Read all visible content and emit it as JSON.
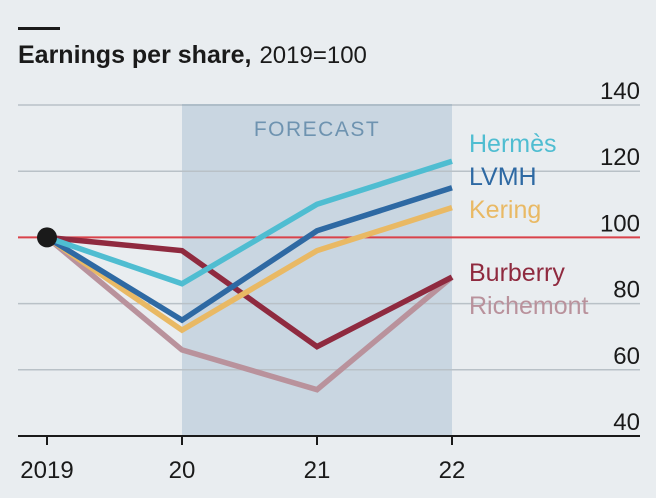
{
  "colors": {
    "background": "#e9edf0",
    "forecast_band": "#c9d6e1",
    "forecast_line": "#8fb0c9",
    "forecast_text": "#6e93b0",
    "gridline": "#b9c1c7",
    "baseline": "#d9424a",
    "axis": "#1a1a1a"
  },
  "chart_data": {
    "type": "line",
    "title": "Earnings per share,",
    "subtitle": "2019=100",
    "categories": [
      "2019",
      "20",
      "21",
      "22"
    ],
    "x": [
      2019,
      2020,
      2021,
      2022
    ],
    "ylim": [
      40,
      140
    ],
    "yticks": [
      40,
      60,
      80,
      100,
      120,
      140
    ],
    "ytick_labels": [
      "40",
      "60",
      "80",
      "100",
      "120",
      "140"
    ],
    "reference_line": 100,
    "forecast": {
      "label": "FORECAST",
      "from": 2020,
      "to": 2022
    },
    "start_marker": {
      "x": 2019,
      "y": 100
    },
    "grid": true,
    "series": [
      {
        "name": "Hermès",
        "color": "#4fbdd1",
        "values": [
          100,
          86,
          110,
          123
        ]
      },
      {
        "name": "LVMH",
        "color": "#2e69a3",
        "values": [
          100,
          75,
          102,
          115
        ]
      },
      {
        "name": "Kering",
        "color": "#e9b964",
        "values": [
          100,
          72,
          96,
          109
        ]
      },
      {
        "name": "Burberry",
        "color": "#8f2a3f",
        "values": [
          100,
          96,
          67,
          88
        ]
      },
      {
        "name": "Richemont",
        "color": "#b9929c",
        "values": [
          100,
          66,
          54,
          88
        ]
      }
    ]
  }
}
